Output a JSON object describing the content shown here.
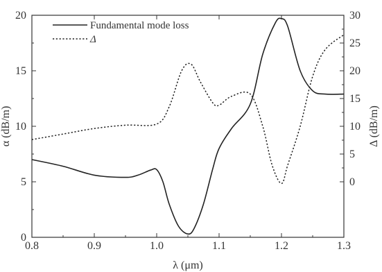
{
  "chart_data": {
    "type": "line",
    "xlabel": "λ (μm)",
    "ylabel_left": "α (dB/m)",
    "ylabel_right": "Δ (dB/m)",
    "xlim": [
      0.8,
      1.3
    ],
    "ylim_left": [
      0,
      20
    ],
    "ylim_right_ticks": [
      0,
      30
    ],
    "x_ticks": [
      "0.8",
      "0.9",
      "1.0",
      "1.1",
      "1.2",
      "1.3"
    ],
    "y_left_ticks": [
      "0",
      "5",
      "10",
      "15",
      "20"
    ],
    "y_right_ticks": [
      "0",
      "5",
      "10",
      "15",
      "20",
      "25",
      "30"
    ],
    "grid": false,
    "legend_position": "top-left",
    "series": [
      {
        "name": "Fundamental mode loss",
        "axis": "left",
        "style": "solid",
        "x": [
          0.8,
          0.85,
          0.9,
          0.95,
          0.97,
          0.99,
          1.0,
          1.01,
          1.02,
          1.035,
          1.05,
          1.06,
          1.075,
          1.09,
          1.1,
          1.12,
          1.15,
          1.17,
          1.19,
          1.2,
          1.21,
          1.23,
          1.25,
          1.27,
          1.3
        ],
        "values": [
          7.0,
          6.4,
          5.6,
          5.4,
          5.6,
          6.05,
          6.1,
          5.0,
          3.0,
          1.0,
          0.3,
          0.8,
          3.0,
          6.2,
          8.0,
          9.8,
          12.0,
          16.5,
          19.3,
          19.7,
          19.0,
          15.0,
          13.2,
          12.9,
          12.9
        ]
      },
      {
        "name": "Δ",
        "axis": "right",
        "style": "dotted",
        "x": [
          0.8,
          0.85,
          0.9,
          0.95,
          1.0,
          1.02,
          1.04,
          1.055,
          1.07,
          1.09,
          1.1,
          1.12,
          1.15,
          1.17,
          1.185,
          1.2,
          1.21,
          1.23,
          1.25,
          1.27,
          1.3
        ],
        "values": [
          7.6,
          8.6,
          9.6,
          10.2,
          10.4,
          13.5,
          20.0,
          21.2,
          18.0,
          14.2,
          13.8,
          15.4,
          15.8,
          10.0,
          3.0,
          -0.3,
          3.0,
          10.0,
          19.0,
          23.8,
          26.5
        ]
      }
    ]
  }
}
